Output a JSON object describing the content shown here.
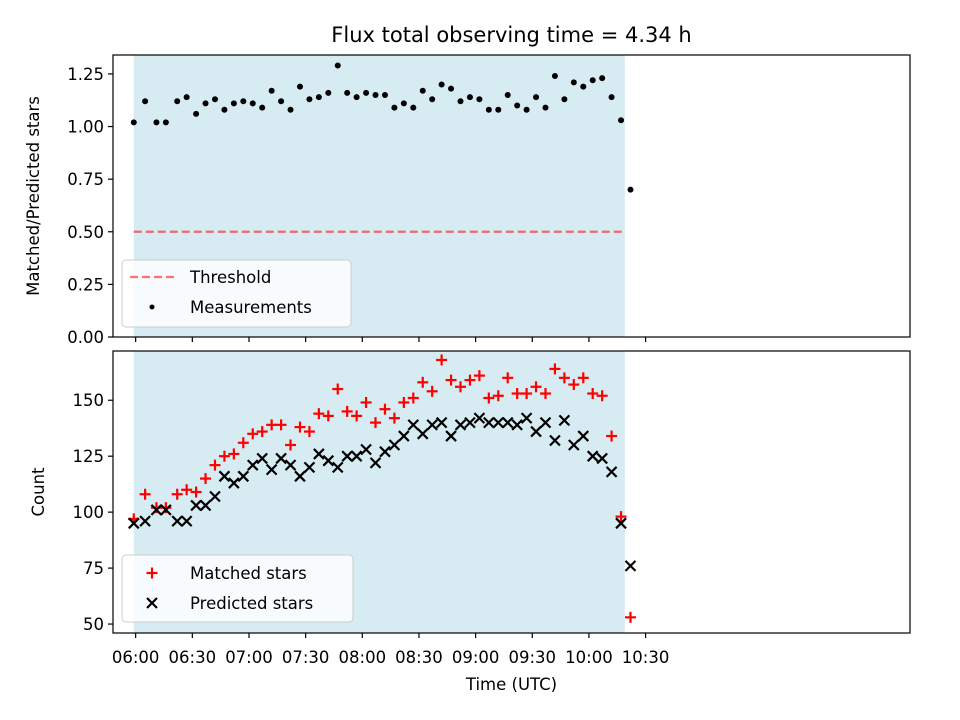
{
  "chart_data": [
    {
      "type": "scatter",
      "title": "Flux total observing time = 4.34 h",
      "xlabel": "",
      "ylabel": "Matched/Predicted stars",
      "ylim": [
        0,
        1.34
      ],
      "xlim_minutes": [
        -12,
        410
      ],
      "yticks": [
        0,
        0.25,
        0.5,
        0.75,
        1.0,
        1.25
      ],
      "ytick_labels": [
        "0.00",
        "0.25",
        "0.50",
        "0.75",
        "1.00",
        "1.25"
      ],
      "observing_window_minutes": [
        -1,
        259
      ],
      "threshold": 0.5,
      "legend": [
        "Threshold",
        "Measurements"
      ],
      "legend_location": "lower-left",
      "x_minutes": [
        -1,
        5,
        11,
        16,
        22,
        27,
        32,
        37,
        42,
        47,
        52,
        57,
        62,
        67,
        72,
        77,
        82,
        87,
        92,
        97,
        102,
        107,
        112,
        117,
        122,
        127,
        132,
        137,
        142,
        147,
        152,
        157,
        162,
        167,
        172,
        177,
        182,
        187,
        192,
        197,
        202,
        207,
        212,
        217,
        222,
        227,
        232,
        237,
        242,
        247,
        252,
        257,
        262
      ],
      "values": [
        1.02,
        1.12,
        1.02,
        1.02,
        1.12,
        1.14,
        1.06,
        1.11,
        1.13,
        1.08,
        1.11,
        1.12,
        1.11,
        1.09,
        1.17,
        1.12,
        1.08,
        1.19,
        1.13,
        1.14,
        1.16,
        1.29,
        1.16,
        1.14,
        1.16,
        1.15,
        1.15,
        1.09,
        1.11,
        1.09,
        1.17,
        1.13,
        1.2,
        1.18,
        1.12,
        1.14,
        1.13,
        1.08,
        1.08,
        1.15,
        1.1,
        1.08,
        1.14,
        1.09,
        1.24,
        1.13,
        1.21,
        1.19,
        1.22,
        1.23,
        1.14,
        1.03,
        0.7
      ]
    },
    {
      "type": "scatter",
      "title": "",
      "xlabel": "Time (UTC)",
      "ylabel": "Count",
      "ylim": [
        46,
        172
      ],
      "xlim_minutes": [
        -12,
        410
      ],
      "yticks": [
        50,
        75,
        100,
        125,
        150
      ],
      "ytick_labels": [
        "50",
        "75",
        "100",
        "125",
        "150"
      ],
      "xticks_minutes": [
        0,
        30,
        60,
        90,
        120,
        150,
        180,
        210,
        240,
        270
      ],
      "xtick_labels": [
        "06:00",
        "06:30",
        "07:00",
        "07:30",
        "08:00",
        "08:30",
        "09:00",
        "09:30",
        "10:00",
        "10:30"
      ],
      "legend": [
        "Matched stars",
        "Predicted stars"
      ],
      "legend_location": "lower-left",
      "x_minutes": [
        -1,
        5,
        11,
        16,
        22,
        27,
        32,
        37,
        42,
        47,
        52,
        57,
        62,
        67,
        72,
        77,
        82,
        87,
        92,
        97,
        102,
        107,
        112,
        117,
        122,
        127,
        132,
        137,
        142,
        147,
        152,
        157,
        162,
        167,
        172,
        177,
        182,
        187,
        192,
        197,
        202,
        207,
        212,
        217,
        222,
        227,
        232,
        237,
        242,
        247,
        252,
        257,
        262
      ],
      "series": [
        {
          "name": "Matched stars",
          "color": "#ff0000",
          "marker": "plus",
          "values": [
            97,
            108,
            102,
            102,
            108,
            110,
            109,
            115,
            121,
            125,
            126,
            131,
            135,
            136,
            139,
            139,
            130,
            138,
            136,
            144,
            143,
            155,
            145,
            143,
            149,
            140,
            146,
            142,
            149,
            151,
            158,
            154,
            168,
            159,
            156,
            159,
            161,
            151,
            152,
            160,
            153,
            153,
            156,
            153,
            164,
            160,
            157,
            160,
            153,
            152,
            134,
            98,
            53
          ]
        },
        {
          "name": "Predicted stars",
          "color": "#000000",
          "marker": "x",
          "values": [
            95,
            96,
            101,
            101,
            96,
            96,
            103,
            103,
            107,
            116,
            113,
            116,
            121,
            124,
            119,
            124,
            121,
            116,
            120,
            126,
            123,
            120,
            125,
            125,
            128,
            122,
            127,
            130,
            134,
            139,
            135,
            139,
            140,
            134,
            139,
            140,
            142,
            140,
            140,
            140,
            139,
            142,
            136,
            140,
            132,
            141,
            130,
            134,
            125,
            124,
            118,
            95,
            76
          ]
        }
      ]
    }
  ]
}
